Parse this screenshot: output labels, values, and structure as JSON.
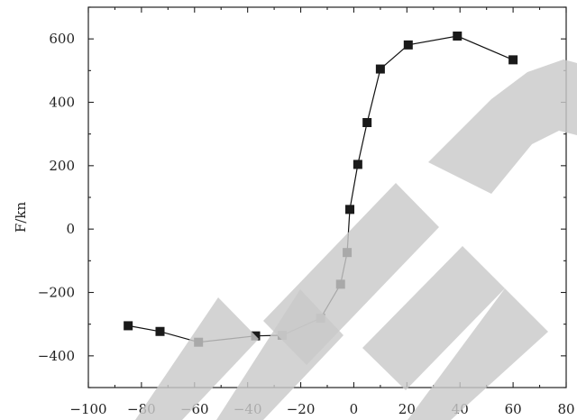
{
  "colors": {
    "marker": "#1a1a1a",
    "line": "#111111",
    "watermark": "#c9c9c9"
  },
  "watermark": "RETRACTED",
  "chart_data": {
    "type": "line",
    "title": "",
    "xlabel": "",
    "ylabel": "F/kn",
    "xlim": [
      -100,
      80
    ],
    "ylim": [
      -500,
      700
    ],
    "grid": false,
    "x_ticks": [
      -100,
      -80,
      -60,
      -40,
      -20,
      0,
      20,
      40,
      60,
      80
    ],
    "x_tick_labels": [
      "−100",
      "−80",
      "−60",
      "−40",
      "−20",
      "0",
      "20",
      "40",
      "60",
      "80"
    ],
    "y_ticks": [
      -400,
      -200,
      0,
      200,
      400,
      600
    ],
    "y_tick_labels": [
      "−400",
      "−200",
      "0",
      "200",
      "400",
      "600"
    ],
    "series": [
      {
        "marker": "square",
        "points": [
          {
            "x": -85,
            "y": -305
          },
          {
            "x": -73,
            "y": -323
          },
          {
            "x": -58.5,
            "y": -357
          },
          {
            "x": -37,
            "y": -337
          },
          {
            "x": -27,
            "y": -335
          },
          {
            "x": -12.5,
            "y": -281
          },
          {
            "x": -5,
            "y": -174
          },
          {
            "x": -2.5,
            "y": -74
          },
          {
            "x": -1.5,
            "y": 62
          },
          {
            "x": 1.5,
            "y": 204
          },
          {
            "x": 5,
            "y": 336
          },
          {
            "x": 10,
            "y": 505
          },
          {
            "x": 20.5,
            "y": 581
          },
          {
            "x": 39,
            "y": 609
          },
          {
            "x": 60,
            "y": 534
          }
        ]
      }
    ]
  }
}
